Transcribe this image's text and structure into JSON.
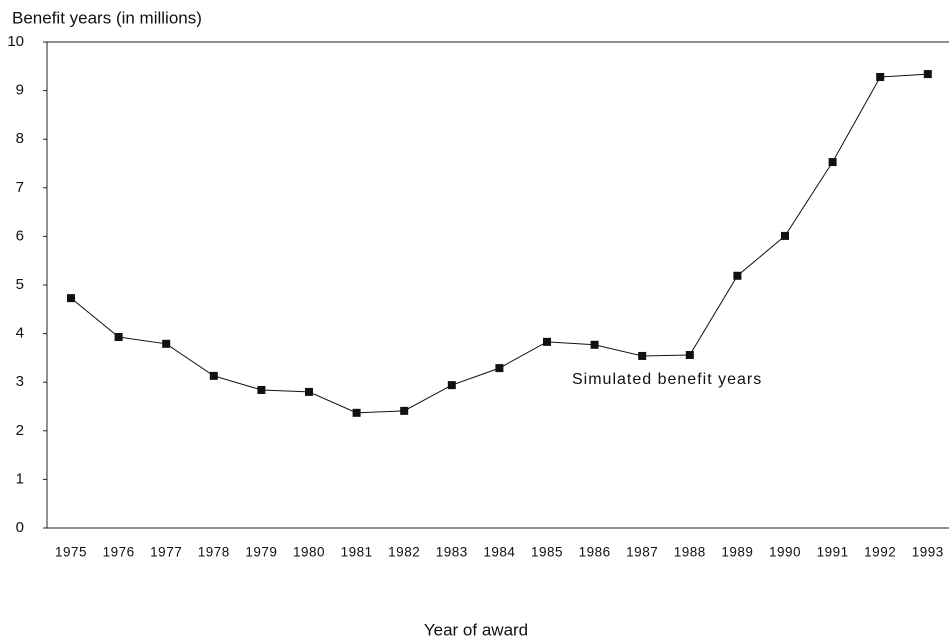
{
  "chart_data": {
    "type": "line",
    "y_label": "Benefit years (in millions)",
    "x_label": "Year of award",
    "annotation": "Simulated benefit years",
    "categories": [
      "1975",
      "1976",
      "1977",
      "1978",
      "1979",
      "1980",
      "1981",
      "1982",
      "1983",
      "1984",
      "1985",
      "1986",
      "1987",
      "1988",
      "1989",
      "1990",
      "1991",
      "1992",
      "1993"
    ],
    "values": [
      4.73,
      3.93,
      3.79,
      3.13,
      2.84,
      2.8,
      2.37,
      2.41,
      2.94,
      3.29,
      3.83,
      3.77,
      3.54,
      3.56,
      5.19,
      6.01,
      7.53,
      9.28,
      9.34
    ],
    "color": "#111111",
    "ylim": [
      0,
      10
    ],
    "yticks": [
      0,
      1,
      2,
      3,
      4,
      5,
      6,
      7,
      8,
      9,
      10
    ]
  }
}
